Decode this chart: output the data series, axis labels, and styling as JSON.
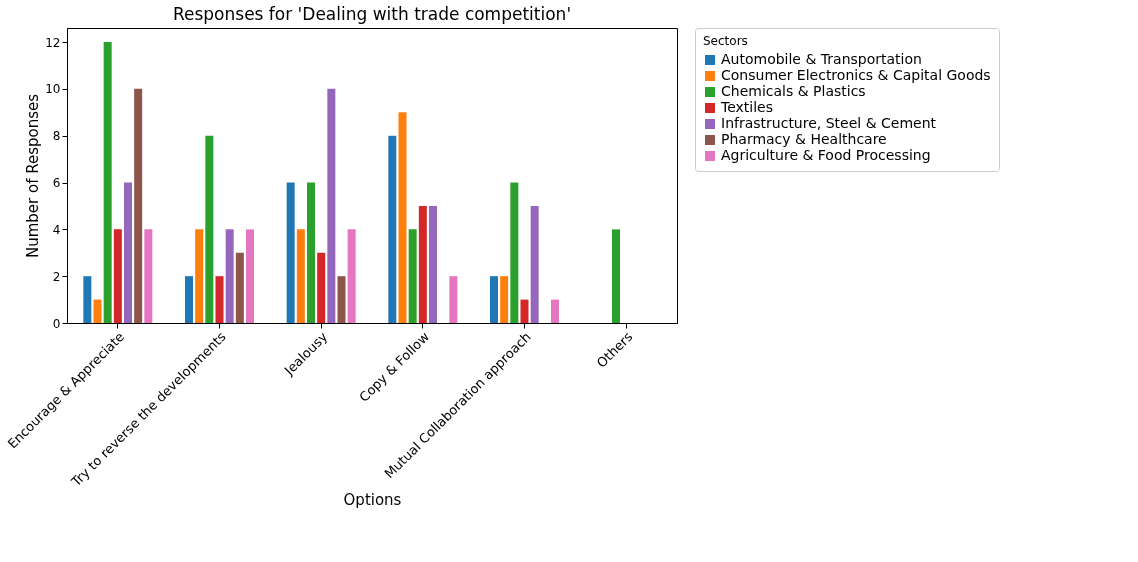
{
  "chart_data": {
    "type": "bar",
    "title": "Responses for 'Dealing with trade competition'",
    "xlabel": "Options",
    "ylabel": "Number of Responses",
    "legend_title": "Sectors",
    "categories": [
      "Encourage & Appreciate",
      "Try to reverse the developments",
      "Jealousy",
      "Copy & Follow",
      "Mutual Collaboration approach",
      "Others"
    ],
    "series": [
      {
        "name": "Automobile & Transportation",
        "color": "#1f77b4",
        "values": [
          2,
          2,
          6,
          8,
          2,
          0
        ]
      },
      {
        "name": "Consumer Electronics & Capital Goods",
        "color": "#ff7f0e",
        "values": [
          1,
          4,
          4,
          9,
          2,
          0
        ]
      },
      {
        "name": "Chemicals & Plastics",
        "color": "#2ca02c",
        "values": [
          12,
          8,
          6,
          4,
          6,
          4
        ]
      },
      {
        "name": "Textiles",
        "color": "#d62728",
        "values": [
          4,
          2,
          3,
          5,
          1,
          0
        ]
      },
      {
        "name": "Infrastructure, Steel & Cement",
        "color": "#9467bd",
        "values": [
          6,
          4,
          10,
          5,
          5,
          0
        ]
      },
      {
        "name": "Pharmacy & Healthcare",
        "color": "#8c564b",
        "values": [
          10,
          3,
          2,
          0,
          0,
          0
        ]
      },
      {
        "name": "Agriculture & Food Processing",
        "color": "#e377c2",
        "values": [
          4,
          4,
          4,
          2,
          1,
          0
        ]
      }
    ],
    "ylim": [
      0,
      12.6
    ],
    "yticks": [
      0,
      2,
      4,
      6,
      8,
      10,
      12
    ],
    "grid": false,
    "legend": "top right"
  }
}
